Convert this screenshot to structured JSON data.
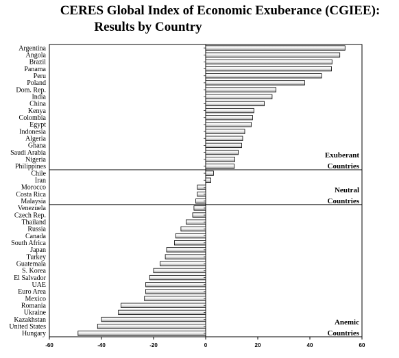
{
  "chart_data": {
    "type": "bar",
    "orientation": "horizontal",
    "title_line1": "CERES Global Index of Economic Exuberance (CGIEE):",
    "title_line2": "Results by Country",
    "xlim": [
      -60,
      60
    ],
    "xticks": [
      "-60",
      "-40",
      "-20",
      "0",
      "20",
      "40",
      "60"
    ],
    "categories": [
      "Argentina",
      "Angola",
      "Brazil",
      "Panama",
      "Peru",
      "Poland",
      "Dom. Rep.",
      "India",
      "China",
      "Kenya",
      "Colombia",
      "Egypt",
      "Indonesia",
      "Algeria",
      "Ghana",
      "Saudi Arabia",
      "Nigeria",
      "Philippines",
      "Chile",
      "Iran",
      "Morocco",
      "Costa Rica",
      "Malaysia",
      "Venezuela",
      "Czech Rep.",
      "Thailand",
      "Russia",
      "Canada",
      "South Africa",
      "Japan",
      "Turkey",
      "Guatemala",
      "S. Korea",
      "El Salvador",
      "UAE",
      "Euro Area",
      "Mexico",
      "Romania",
      "Ukraine",
      "Kazakhstan",
      "United States",
      "Hungary"
    ],
    "values": [
      53.5,
      51.5,
      48.5,
      48.3,
      44.5,
      38,
      27,
      25.5,
      22.5,
      18.5,
      18,
      17.5,
      15,
      14.2,
      13.8,
      12.5,
      11.2,
      11,
      3,
      2,
      -3.2,
      -3.2,
      -3.8,
      -4.5,
      -5,
      -7.5,
      -9.5,
      -11.5,
      -12,
      -15,
      -15.5,
      -17.5,
      -20,
      -21.5,
      -23,
      -23,
      -23.5,
      -32.5,
      -33.5,
      -40,
      -41.5,
      -49
    ],
    "groups": [
      {
        "line1": "Exuberant",
        "line2": "Countries"
      },
      {
        "line1": "Neutral",
        "line2": "Countries"
      },
      {
        "line1": "Anemic",
        "line2": "Countries"
      }
    ]
  }
}
